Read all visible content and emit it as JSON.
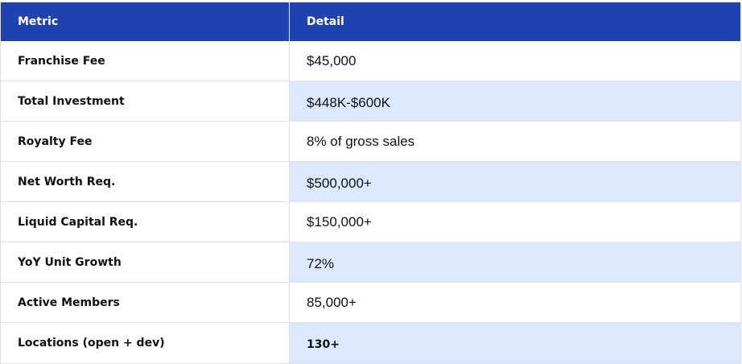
{
  "table": {
    "headers": {
      "metric": "Metric",
      "detail": "Detail"
    },
    "rows": [
      {
        "metric": "Franchise Fee",
        "detail": "$45,000"
      },
      {
        "metric": "Total Investment",
        "detail": "$448K-$600K"
      },
      {
        "metric": "Royalty Fee",
        "detail": "8% of gross sales"
      },
      {
        "metric": "Net Worth Req.",
        "detail": "$500,000+"
      },
      {
        "metric": "Liquid Capital Req.",
        "detail": "$150,000+"
      },
      {
        "metric": "YoY Unit Growth",
        "detail": "72%"
      },
      {
        "metric": "Active Members",
        "detail": "85,000+"
      },
      {
        "metric": "Locations (open + dev)",
        "detail": "130+"
      }
    ]
  },
  "colors": {
    "header_background": "#1f42b1",
    "shaded_cell": "#dbe8fd",
    "border": "#e0e0e0"
  }
}
